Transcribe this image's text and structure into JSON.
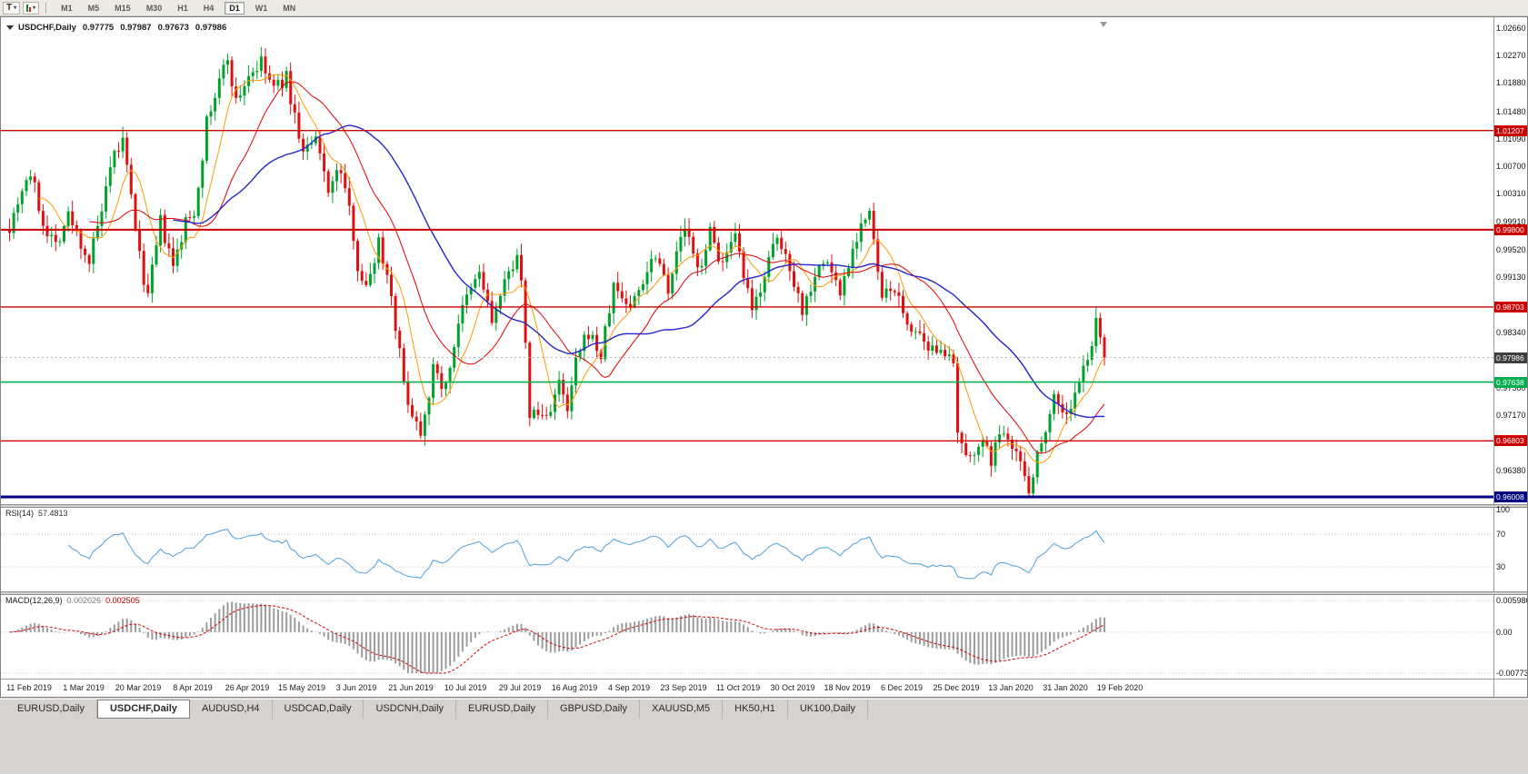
{
  "toolbar": {
    "tool_buttons": [
      {
        "name": "text-tool-button",
        "label": "T"
      },
      {
        "name": "chart-type-button",
        "label": ""
      }
    ],
    "timeframes": [
      "M1",
      "M5",
      "M15",
      "M30",
      "H1",
      "H4",
      "D1",
      "W1",
      "MN"
    ],
    "active_timeframe": "D1"
  },
  "chart": {
    "symbol_title": "USDCHF,Daily",
    "ohlc": {
      "open": "0.97775",
      "high": "0.97987",
      "low": "0.97673",
      "close": "0.97986"
    },
    "current_price": "0.97986",
    "price_axis": [
      "1.02660",
      "1.02270",
      "1.01880",
      "1.01480",
      "1.01090",
      "1.00700",
      "1.00310",
      "0.99910",
      "0.99520",
      "0.99130",
      "0.98730",
      "0.98340",
      "0.97950",
      "0.97560",
      "0.97170",
      "0.96770",
      "0.96380",
      "0.95990"
    ],
    "levels": [
      {
        "label": "1.01207",
        "value": 1.01207,
        "color": "#cc0000",
        "thickness": 1.4
      },
      {
        "label": "0.99800",
        "value": 0.998,
        "color": "#cc0000",
        "thickness": 2
      },
      {
        "label": "0.98703",
        "value": 0.98703,
        "color": "#cc0000",
        "thickness": 1.4
      },
      {
        "label": "0.97638",
        "value": 0.97638,
        "color": "#00b050",
        "thickness": 1.6
      },
      {
        "label": "0.96803",
        "value": 0.96803,
        "color": "#cc0000",
        "thickness": 1.4
      },
      {
        "label": "0.96008",
        "value": 0.96008,
        "color": "#000080",
        "thickness": 3
      }
    ],
    "up_color": "#00a22b",
    "down_color": "#e01010",
    "ma_colors": {
      "fast": "#ff9900",
      "medium": "#e00000",
      "slow": "#2525cc"
    }
  },
  "rsi": {
    "label": "RSI(14)",
    "value": "57.4813",
    "axis": [
      "100",
      "70",
      "30"
    ],
    "line_color": "#4f9fd8"
  },
  "macd": {
    "label": "MACD(12,26,9)",
    "value_main": "0.002026",
    "value_signal": "0.002505",
    "axis_top": "0.005986",
    "axis_zero": "0.00",
    "axis_bottom": "-0.007731"
  },
  "dates": [
    "11 Feb 2019",
    "1 Mar 2019",
    "20 Mar 2019",
    "8 Apr 2019",
    "26 Apr 2019",
    "15 May 2019",
    "3 Jun 2019",
    "21 Jun 2019",
    "10 Jul 2019",
    "29 Jul 2019",
    "16 Aug 2019",
    "4 Sep 2019",
    "23 Sep 2019",
    "11 Oct 2019",
    "30 Oct 2019",
    "18 Nov 2019",
    "6 Dec 2019",
    "25 Dec 2019",
    "13 Jan 2020",
    "31 Jan 2020",
    "19 Feb 2020"
  ],
  "tabs": [
    {
      "label": "EURUSD,Daily",
      "active": false
    },
    {
      "label": "USDCHF,Daily",
      "active": true
    },
    {
      "label": "AUDUSD,H4",
      "active": false
    },
    {
      "label": "USDCAD,Daily",
      "active": false
    },
    {
      "label": "USDCNH,Daily",
      "active": false
    },
    {
      "label": "EURUSD,Daily",
      "active": false
    },
    {
      "label": "GBPUSD,Daily",
      "active": false
    },
    {
      "label": "XAUUSD,M5",
      "active": false
    },
    {
      "label": "HK50,H1",
      "active": false
    },
    {
      "label": "UK100,Daily",
      "active": false
    }
  ],
  "chart_data": {
    "type": "candlestick",
    "symbol": "USDCHF",
    "timeframe": "Daily",
    "title": "USDCHF,Daily 0.97775 0.97987 0.97673 0.97986",
    "x_range": [
      "11 Feb 2019",
      "19 Feb 2020"
    ],
    "y_range": [
      0.9593,
      1.02763
    ],
    "bar_count": 262,
    "seed": 7,
    "last_close": 0.97986,
    "support_resistance_lines": [
      1.01207,
      0.998,
      0.98703,
      0.97638,
      0.96803,
      0.96008
    ],
    "moving_averages": [
      {
        "period": 8,
        "color": "#ff9900"
      },
      {
        "period": 20,
        "color": "#e00000"
      },
      {
        "period": 40,
        "color": "#2525cc"
      }
    ],
    "indicators": [
      {
        "name": "RSI",
        "params": [
          14
        ],
        "last_value": 57.4813,
        "grid_levels": [
          100,
          70,
          30
        ]
      },
      {
        "name": "MACD",
        "params": [
          12,
          26,
          9
        ],
        "last_main": 0.002026,
        "last_signal": 0.002505,
        "axis_range": [
          -0.007731,
          0.005986
        ]
      }
    ],
    "price_path_anchors": [
      [
        0,
        0.9985
      ],
      [
        3,
        1.004
      ],
      [
        5,
        1.006
      ],
      [
        8,
        0.999
      ],
      [
        11,
        0.996
      ],
      [
        14,
        1.0
      ],
      [
        19,
        0.9935
      ],
      [
        22,
        1.0005
      ],
      [
        25,
        1.0085
      ],
      [
        27,
        1.0105
      ],
      [
        30,
        0.9985
      ],
      [
        31,
        0.994
      ],
      [
        33,
        0.9885
      ],
      [
        36,
        0.999
      ],
      [
        39,
        0.9925
      ],
      [
        42,
        0.999
      ],
      [
        44,
        1.0005
      ],
      [
        47,
        1.013
      ],
      [
        50,
        1.019
      ],
      [
        52,
        1.0225
      ],
      [
        54,
        1.016
      ],
      [
        57,
        1.02
      ],
      [
        60,
        1.0215
      ],
      [
        63,
        1.018
      ],
      [
        66,
        1.0195
      ],
      [
        68,
        1.014
      ],
      [
        70,
        1.009
      ],
      [
        73,
        1.0105
      ],
      [
        76,
        1.004
      ],
      [
        79,
        1.0065
      ],
      [
        82,
        0.9975
      ],
      [
        83,
        0.993
      ],
      [
        85,
        0.9895
      ],
      [
        88,
        0.9965
      ],
      [
        91,
        0.989
      ],
      [
        94,
        0.976
      ],
      [
        96,
        0.972
      ],
      [
        98,
        0.9695
      ],
      [
        101,
        0.978
      ],
      [
        104,
        0.9755
      ],
      [
        107,
        0.985
      ],
      [
        109,
        0.988
      ],
      [
        112,
        0.992
      ],
      [
        115,
        0.985
      ],
      [
        118,
        0.99
      ],
      [
        121,
        0.995
      ],
      [
        122,
        0.99
      ],
      [
        124,
        0.972
      ],
      [
        128,
        0.9715
      ],
      [
        131,
        0.976
      ],
      [
        133,
        0.972
      ],
      [
        135,
        0.979
      ],
      [
        138,
        0.9835
      ],
      [
        141,
        0.98
      ],
      [
        144,
        0.99
      ],
      [
        148,
        0.987
      ],
      [
        151,
        0.991
      ],
      [
        154,
        0.995
      ],
      [
        157,
        0.99
      ],
      [
        160,
        0.9965
      ],
      [
        161,
        0.9985
      ],
      [
        164,
        0.992
      ],
      [
        167,
        0.9975
      ],
      [
        170,
        0.993
      ],
      [
        173,
        0.9965
      ],
      [
        174,
        0.994
      ],
      [
        177,
        0.986
      ],
      [
        180,
        0.992
      ],
      [
        183,
        0.9965
      ],
      [
        186,
        0.993
      ],
      [
        189,
        0.9865
      ],
      [
        192,
        0.992
      ],
      [
        195,
        0.9935
      ],
      [
        198,
        0.989
      ],
      [
        200,
        0.9935
      ],
      [
        203,
        0.999
      ],
      [
        205,
        1.0
      ],
      [
        208,
        0.988
      ],
      [
        211,
        0.99
      ],
      [
        213,
        0.9855
      ],
      [
        216,
        0.9835
      ],
      [
        219,
        0.98
      ],
      [
        222,
        0.982
      ],
      [
        225,
        0.978
      ],
      [
        226,
        0.969
      ],
      [
        228,
        0.965
      ],
      [
        231,
        0.968
      ],
      [
        234,
        0.9655
      ],
      [
        237,
        0.97
      ],
      [
        239,
        0.968
      ],
      [
        243,
        0.9615
      ],
      [
        246,
        0.968
      ],
      [
        249,
        0.9745
      ],
      [
        252,
        0.9715
      ],
      [
        255,
        0.976
      ],
      [
        258,
        0.982
      ],
      [
        259,
        0.9845
      ],
      [
        261,
        0.97986
      ]
    ]
  }
}
